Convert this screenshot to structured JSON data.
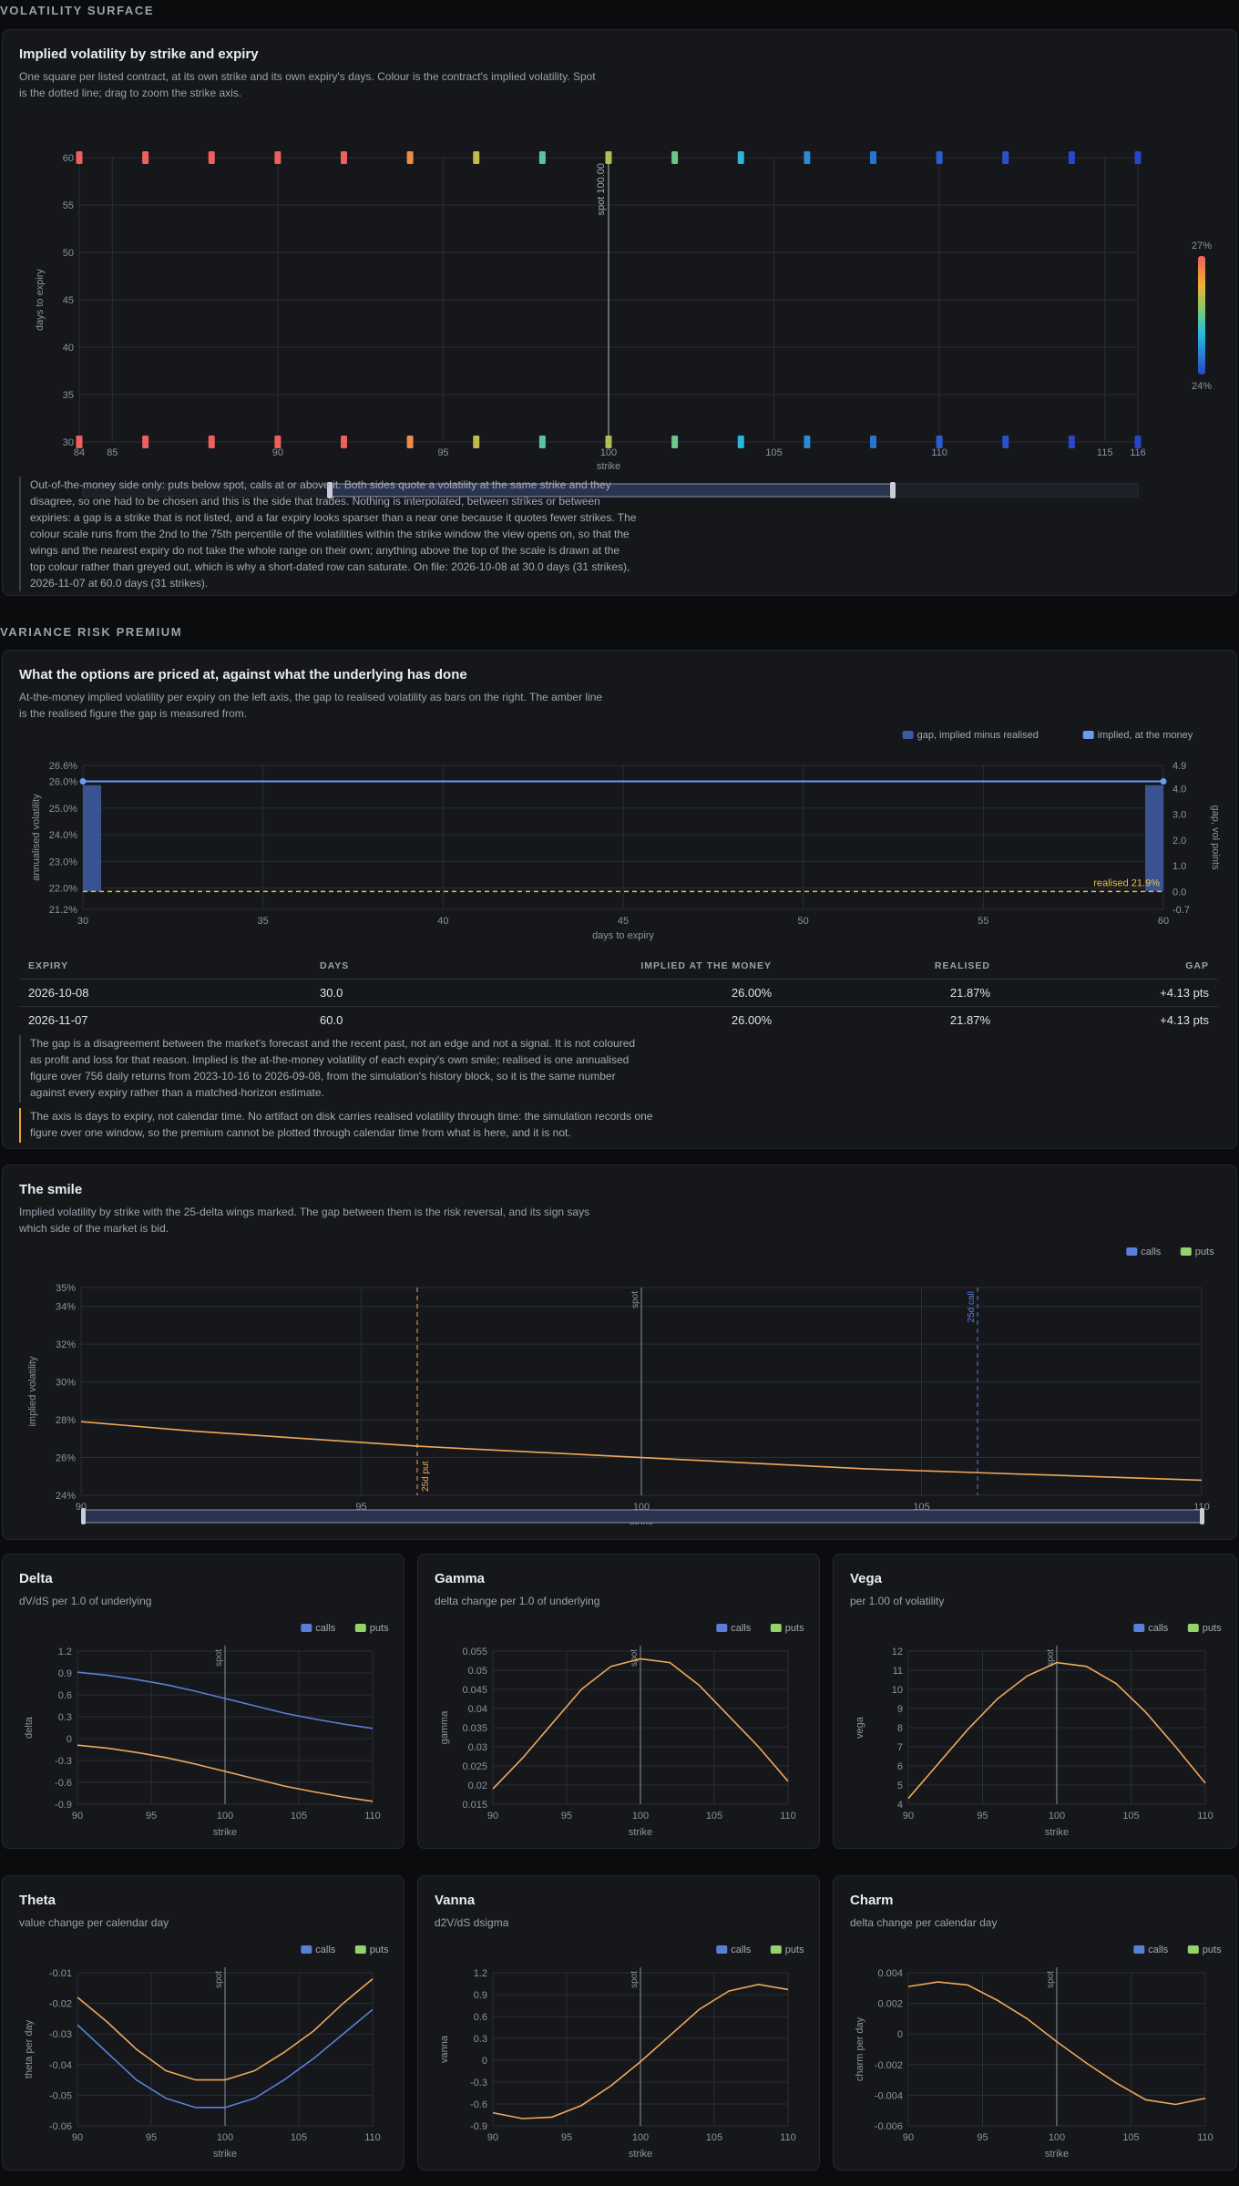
{
  "surface_section": {
    "heading": "VOLATILITY SURFACE",
    "title": "Implied volatility by strike and expiry",
    "subtitle": "One square per listed contract, at its own strike and its own expiry's days. Colour is the contract's implied volatility. Spot\nis the dotted line; drag to zoom the strike axis.",
    "note": "Out-of-the-money side only: puts below spot, calls at or above it. Both sides quote a volatility at the same strike and they\ndisagree, so one had to be chosen and this is the side that trades. Nothing is interpolated, between strikes or between\nexpiries: a gap is a strike that is not listed, and a far expiry looks sparser than a near one because it quotes fewer strikes. The\ncolour scale runs from the 2nd to the 75th percentile of the volatilities within the strike window the view opens on, so that the\nwings and the nearest expiry do not take the whole range on their own; anything above the top of the scale is drawn at the\ntop colour rather than greyed out, which is why a short-dated row can saturate. On file: 2026-10-08 at 30.0 days (31 strikes),\n2026-11-07 at 60.0 days (31 strikes)."
  },
  "vrp_section": {
    "heading": "VARIANCE RISK PREMIUM",
    "title": "What the options are priced at, against what the underlying has done",
    "subtitle": "At-the-money implied volatility per expiry on the left axis, the gap to realised volatility as bars on the right. The amber line\nis the realised figure the gap is measured from.",
    "table_headers": [
      "EXPIRY",
      "DAYS",
      "IMPLIED AT THE MONEY",
      "REALISED",
      "GAP"
    ],
    "table_rows": [
      [
        "2026-10-08",
        "30.0",
        "26.00%",
        "21.87%",
        "+4.13 pts"
      ],
      [
        "2026-11-07",
        "60.0",
        "26.00%",
        "21.87%",
        "+4.13 pts"
      ]
    ],
    "note1": "The gap is a disagreement between the market's forecast and the recent past, not an edge and not a signal. It is not coloured\nas profit and loss for that reason. Implied is the at-the-money volatility of each expiry's own smile; realised is one annualised\nfigure over 756 daily returns from 2023-10-16 to 2026-09-08, from the simulation's history block, so it is the same number\nagainst every expiry rather than a matched-horizon estimate.",
    "note2": "The axis is days to expiry, not calendar time. No artifact on disk carries realised volatility through time: the simulation records one\nfigure over one window, so the premium cannot be plotted through calendar time from what is here, and it is not."
  },
  "smile_section": {
    "title": "The smile",
    "subtitle": "Implied volatility by strike with the 25-delta wings marked. The gap between them is the risk reversal, and its sign says\nwhich side of the market is bid."
  },
  "colors": {
    "calls": "#5b7fd9",
    "puts": "#93d36b",
    "curve": "#f0a85a",
    "realised": "#e8c14a",
    "implied": "#6b9cf0",
    "bar": "#3d5a9e"
  },
  "chart_data": [
    {
      "id": "surface",
      "type": "heatmap",
      "xlabel": "strike",
      "ylabel": "days to expiry",
      "xlim": [
        84,
        116
      ],
      "ylim": [
        30,
        60
      ],
      "x_ticks": [
        84,
        85,
        90,
        95,
        100,
        105,
        110,
        115,
        116
      ],
      "y_ticks": [
        30,
        35,
        40,
        45,
        50,
        55,
        60
      ],
      "spot": 100,
      "spot_label": "spot 100.00",
      "colorbar": {
        "min_label": "24%",
        "max_label": "27%",
        "min": 24,
        "max": 27
      },
      "strikes": [
        84,
        86,
        88,
        90,
        92,
        94,
        96,
        98,
        100,
        102,
        104,
        106,
        108,
        110,
        112,
        114,
        116
      ],
      "expiries": [
        30,
        60
      ],
      "iv": [
        27,
        27,
        27,
        27,
        27,
        26.6,
        26.0,
        25.4,
        25.9,
        25.5,
        25.0,
        24.6,
        24.4,
        24.2,
        24.1,
        24.0,
        24.0
      ]
    },
    {
      "id": "vrp",
      "type": "bar",
      "xlabel": "days to expiry",
      "ylabel": "annualised volatility",
      "y2label": "gap, vol points",
      "xlim": [
        30,
        60
      ],
      "ylim": [
        21.2,
        26.6
      ],
      "y2lim": [
        -0.7,
        4.9
      ],
      "x_ticks": [
        30,
        35,
        40,
        45,
        50,
        55,
        60
      ],
      "y_ticks": [
        "21.2%",
        "22.0%",
        "23.0%",
        "24.0%",
        "25.0%",
        "26.0%",
        "26.6%"
      ],
      "y_tick_values": [
        21.2,
        22,
        23,
        24,
        25,
        26,
        26.6
      ],
      "y2_ticks": [
        -0.7,
        0.0,
        1.0,
        2.0,
        3.0,
        4.0,
        4.9
      ],
      "legend": [
        "gap, implied minus realised",
        "implied, at the money"
      ],
      "x": [
        30,
        60
      ],
      "implied": [
        26.0,
        26.0
      ],
      "gap": [
        4.13,
        4.13
      ],
      "realised": 21.87,
      "realised_label": "realised 21.9%"
    },
    {
      "id": "smile",
      "type": "line",
      "xlabel": "strike",
      "ylabel": "implied volatility",
      "xlim": [
        90,
        110
      ],
      "ylim": [
        24,
        35
      ],
      "x_ticks": [
        90,
        95,
        100,
        105,
        110
      ],
      "y_ticks": [
        "24%",
        "26%",
        "28%",
        "30%",
        "32%",
        "34%",
        "35%"
      ],
      "y_tick_values": [
        24,
        26,
        28,
        30,
        32,
        34,
        35
      ],
      "legend": [
        "calls",
        "puts"
      ],
      "spot": 100,
      "spot_label": "spot",
      "put25": 96,
      "put25_label": "25d put",
      "call25": 106,
      "call25_label": "25d call",
      "x": [
        90,
        92,
        94,
        96,
        98,
        100,
        102,
        104,
        106,
        108,
        110
      ],
      "y": [
        27.9,
        27.4,
        27.0,
        26.6,
        26.3,
        26.0,
        25.7,
        25.4,
        25.2,
        25.0,
        24.8
      ]
    },
    {
      "id": "delta",
      "type": "line",
      "title": "Delta",
      "subtitle": "dV/dS per 1.0 of underlying",
      "ylabel": "delta",
      "xlabel": "strike",
      "xlim": [
        90,
        110
      ],
      "ylim": [
        -0.9,
        1.2
      ],
      "x_ticks": [
        90,
        95,
        100,
        105,
        110
      ],
      "y_ticks": [
        -0.9,
        -0.6,
        -0.3,
        0,
        0.3,
        0.6,
        0.9,
        1.2
      ],
      "y_tick_labels": [
        "-0.9",
        "-0.6",
        "-0.3",
        "0",
        "0.3",
        "0.6",
        "0.9",
        "1.2"
      ],
      "legend": [
        "calls",
        "puts"
      ],
      "spot": 100,
      "spot_label": "spot",
      "x": [
        90,
        92,
        94,
        96,
        98,
        100,
        102,
        104,
        106,
        108,
        110
      ],
      "series": [
        {
          "name": "calls",
          "values": [
            0.91,
            0.87,
            0.81,
            0.74,
            0.65,
            0.55,
            0.45,
            0.35,
            0.27,
            0.2,
            0.14
          ]
        },
        {
          "name": "puts",
          "values": [
            -0.09,
            -0.13,
            -0.19,
            -0.26,
            -0.35,
            -0.45,
            -0.55,
            -0.65,
            -0.73,
            -0.8,
            -0.86
          ]
        }
      ]
    },
    {
      "id": "gamma",
      "type": "line",
      "title": "Gamma",
      "subtitle": "delta change per 1.0 of underlying",
      "ylabel": "gamma",
      "xlabel": "strike",
      "xlim": [
        90,
        110
      ],
      "ylim": [
        0.015,
        0.055
      ],
      "x_ticks": [
        90,
        95,
        100,
        105,
        110
      ],
      "y_ticks": [
        0.015,
        0.02,
        0.025,
        0.03,
        0.035,
        0.04,
        0.045,
        0.05,
        0.055
      ],
      "y_tick_labels": [
        "0.015",
        "0.02",
        "0.025",
        "0.03",
        "0.035",
        "0.04",
        "0.045",
        "0.05",
        "0.055"
      ],
      "legend": [
        "calls",
        "puts"
      ],
      "spot": 100,
      "spot_label": "spot",
      "x": [
        90,
        92,
        94,
        96,
        98,
        100,
        102,
        104,
        106,
        108,
        110
      ],
      "series": [
        {
          "name": "gamma",
          "values": [
            0.019,
            0.027,
            0.036,
            0.045,
            0.051,
            0.053,
            0.052,
            0.046,
            0.038,
            0.03,
            0.021
          ]
        }
      ]
    },
    {
      "id": "vega",
      "type": "line",
      "title": "Vega",
      "subtitle": "per 1.00 of volatility",
      "ylabel": "vega",
      "xlabel": "strike",
      "xlim": [
        90,
        110
      ],
      "ylim": [
        4,
        12
      ],
      "x_ticks": [
        90,
        95,
        100,
        105,
        110
      ],
      "y_ticks": [
        4,
        5,
        6,
        7,
        8,
        9,
        10,
        11,
        12
      ],
      "y_tick_labels": [
        "4",
        "5",
        "6",
        "7",
        "8",
        "9",
        "10",
        "11",
        "12"
      ],
      "legend": [
        "calls",
        "puts"
      ],
      "spot": 100,
      "spot_label": "spot",
      "x": [
        90,
        92,
        94,
        96,
        98,
        100,
        102,
        104,
        106,
        108,
        110
      ],
      "series": [
        {
          "name": "vega",
          "values": [
            4.3,
            6.1,
            7.9,
            9.5,
            10.7,
            11.4,
            11.2,
            10.3,
            8.8,
            7.0,
            5.1
          ]
        }
      ]
    },
    {
      "id": "theta",
      "type": "line",
      "title": "Theta",
      "subtitle": "value change per calendar day",
      "ylabel": "theta per day",
      "xlabel": "strike",
      "xlim": [
        90,
        110
      ],
      "ylim": [
        -0.06,
        -0.01
      ],
      "x_ticks": [
        90,
        95,
        100,
        105,
        110
      ],
      "y_ticks": [
        -0.06,
        -0.05,
        -0.04,
        -0.03,
        -0.02,
        -0.01
      ],
      "y_tick_labels": [
        "-0.06",
        "-0.05",
        "-0.04",
        "-0.03",
        "-0.02",
        "-0.01"
      ],
      "legend": [
        "calls",
        "puts"
      ],
      "spot": 100,
      "spot_label": "spot",
      "x": [
        90,
        92,
        94,
        96,
        98,
        100,
        102,
        104,
        106,
        108,
        110
      ],
      "series": [
        {
          "name": "calls",
          "values": [
            -0.027,
            -0.036,
            -0.045,
            -0.051,
            -0.054,
            -0.054,
            -0.051,
            -0.045,
            -0.038,
            -0.03,
            -0.022
          ]
        },
        {
          "name": "puts",
          "values": [
            -0.018,
            -0.026,
            -0.035,
            -0.042,
            -0.045,
            -0.045,
            -0.042,
            -0.036,
            -0.029,
            -0.02,
            -0.012
          ]
        }
      ]
    },
    {
      "id": "vanna",
      "type": "line",
      "title": "Vanna",
      "subtitle": "d2V/dS dsigma",
      "ylabel": "vanna",
      "xlabel": "strike",
      "xlim": [
        90,
        110
      ],
      "ylim": [
        -0.9,
        1.2
      ],
      "x_ticks": [
        90,
        95,
        100,
        105,
        110
      ],
      "y_ticks": [
        -0.9,
        -0.6,
        -0.3,
        0,
        0.3,
        0.6,
        0.9,
        1.2
      ],
      "y_tick_labels": [
        "-0.9",
        "-0.6",
        "-0.3",
        "0",
        "0.3",
        "0.6",
        "0.9",
        "1.2"
      ],
      "legend": [
        "calls",
        "puts"
      ],
      "spot": 100,
      "spot_label": "spot",
      "x": [
        90,
        92,
        94,
        96,
        98,
        100,
        102,
        104,
        106,
        108,
        110
      ],
      "series": [
        {
          "name": "vanna",
          "values": [
            -0.72,
            -0.8,
            -0.78,
            -0.62,
            -0.35,
            -0.02,
            0.34,
            0.7,
            0.95,
            1.04,
            0.97
          ]
        }
      ]
    },
    {
      "id": "charm",
      "type": "line",
      "title": "Charm",
      "subtitle": "delta change per calendar day",
      "ylabel": "charm per day",
      "xlabel": "strike",
      "xlim": [
        90,
        110
      ],
      "ylim": [
        -0.006,
        0.004
      ],
      "x_ticks": [
        90,
        95,
        100,
        105,
        110
      ],
      "y_ticks": [
        -0.006,
        -0.004,
        -0.002,
        0,
        0.002,
        0.004
      ],
      "y_tick_labels": [
        "-0.006",
        "-0.004",
        "-0.002",
        "0",
        "0.002",
        "0.004"
      ],
      "legend": [
        "calls",
        "puts"
      ],
      "spot": 100,
      "spot_label": "spot",
      "x": [
        90,
        92,
        94,
        96,
        98,
        100,
        102,
        104,
        106,
        108,
        110
      ],
      "series": [
        {
          "name": "charm",
          "values": [
            0.0031,
            0.0034,
            0.0032,
            0.0022,
            0.001,
            -0.0005,
            -0.0019,
            -0.0032,
            -0.0043,
            -0.0046,
            -0.0042
          ]
        }
      ]
    }
  ]
}
